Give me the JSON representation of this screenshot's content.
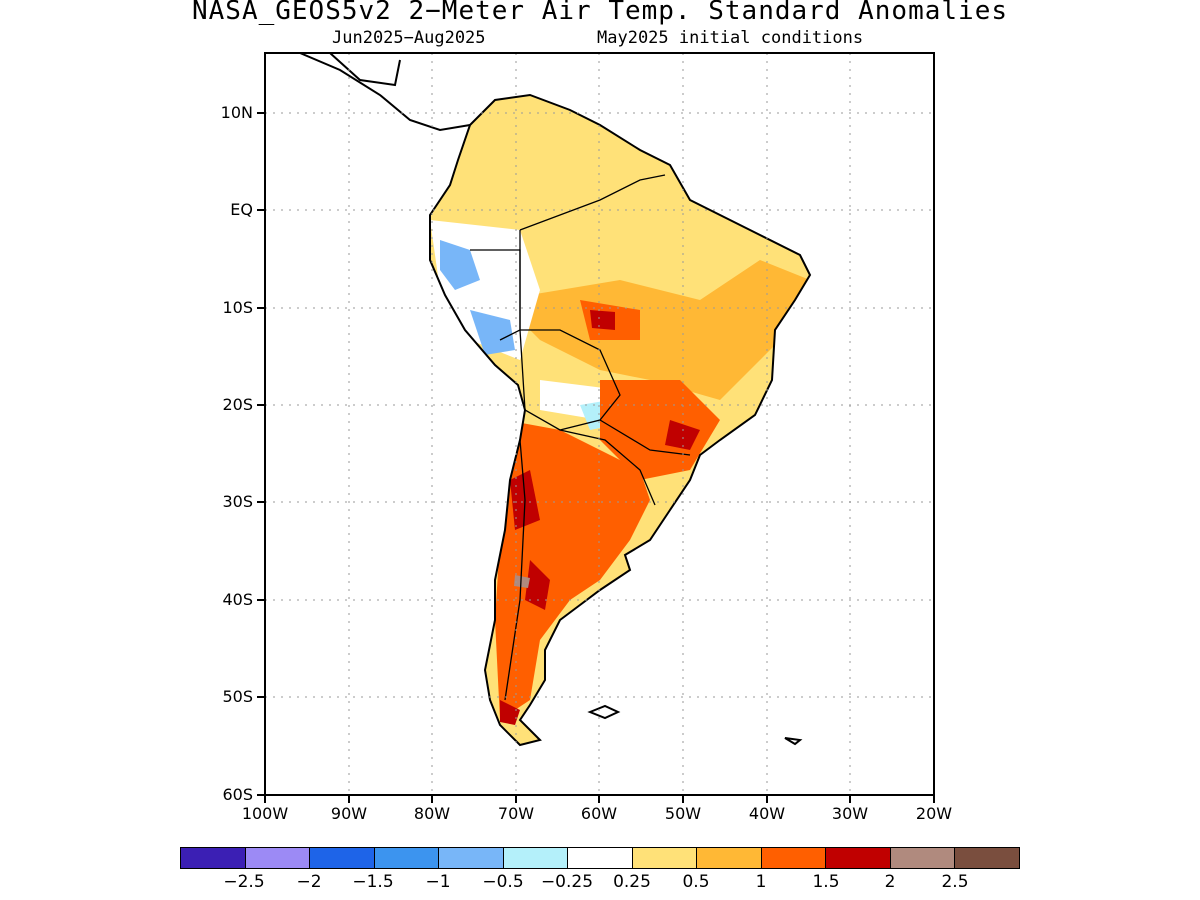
{
  "title": "NASA_GEOS5v2 2−Meter Air Temp. Standard Anomalies",
  "subtitle_left": "Jun2025−Aug2025",
  "subtitle_right": "May2025 initial conditions",
  "lat_labels": [
    "10N",
    "EQ",
    "10S",
    "20S",
    "30S",
    "40S",
    "50S",
    "60S"
  ],
  "lon_labels": [
    "100W",
    "90W",
    "80W",
    "70W",
    "60W",
    "50W",
    "40W",
    "30W",
    "20W"
  ],
  "colorbar": {
    "colors": [
      "#3b1fb4",
      "#9c8af5",
      "#1e64e8",
      "#3c94ef",
      "#78b6f8",
      "#b4f0fa",
      "#ffffff",
      "#ffe178",
      "#ffb835",
      "#ff5f00",
      "#c00000",
      "#b08a7e",
      "#7a4e3e"
    ],
    "labels": [
      "−2.5",
      "−2",
      "−1.5",
      "−1",
      "−0.5",
      "−0.25",
      "0.25",
      "0.5",
      "1",
      "1.5",
      "2",
      "2.5"
    ]
  }
}
